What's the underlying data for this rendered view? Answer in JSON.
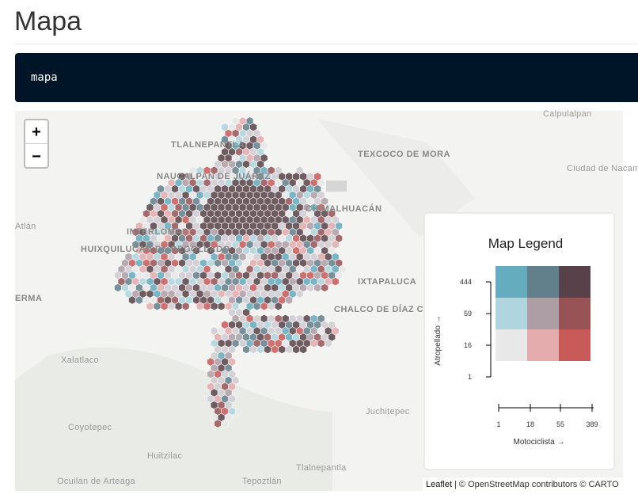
{
  "header": {
    "title": "Mapa"
  },
  "code": {
    "text": "mapa"
  },
  "map": {
    "zoom_in": "+",
    "zoom_out": "−",
    "places": [
      "Calpulalpan",
      "TLALNEPANTLA",
      "TEXCOCO DE MORA",
      "NAUCALPAN DE JUÁREZ",
      "Ciudad de Nacamcalpa",
      "CHIMALHUACÁN",
      "Atlán",
      "INTERLOMAS",
      "HUIXQUILUCAN DE DEGOLLADO",
      "IXTAPALUCA",
      "ERMA",
      "CHALCO DE DÍAZ COVARRUBIAS",
      "Xalatlaco",
      "Juchitepec",
      "Coyotepec",
      "Huitzilac",
      "Tlalnepantla",
      "Ocuilan de Arteaga",
      "Tepoztlán"
    ],
    "attribution": {
      "leaflet": "Leaflet",
      "rest": "| © OpenStreetMap contributors © CARTO"
    }
  },
  "legend": {
    "title": "Map Legend",
    "y_label": "Atropellado →",
    "x_label": "Motociclista →",
    "y_ticks": [
      1,
      16,
      59,
      444
    ],
    "x_ticks": [
      1,
      18,
      55,
      389
    ],
    "colors": [
      [
        "#64acbe",
        "#627f8c",
        "#574249"
      ],
      [
        "#b0d5df",
        "#ad9ea5",
        "#985356"
      ],
      [
        "#e8e8e8",
        "#e4acac",
        "#c85a5a"
      ]
    ]
  }
}
